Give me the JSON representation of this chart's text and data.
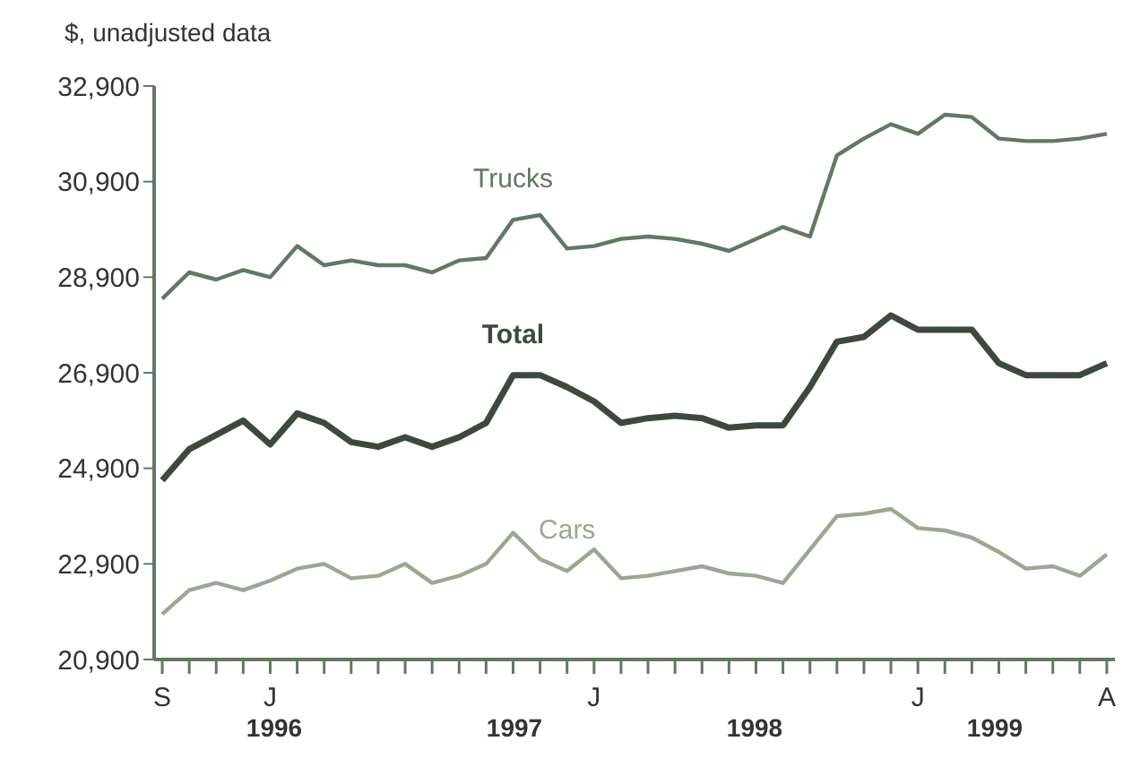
{
  "chart_data": {
    "type": "line",
    "ylabel": "$, unadjusted data",
    "categories": [
      "S",
      null,
      null,
      null,
      "J",
      null,
      null,
      null,
      null,
      null,
      null,
      null,
      null,
      null,
      null,
      null,
      "J",
      null,
      null,
      null,
      null,
      null,
      null,
      null,
      null,
      null,
      null,
      null,
      "J",
      null,
      null,
      null,
      null,
      null,
      null,
      "A"
    ],
    "series": [
      {
        "name": "Trucks",
        "color": "#5f7a60",
        "values": [
          28450,
          29000,
          28850,
          29050,
          28900,
          29550,
          29150,
          29250,
          29150,
          29150,
          29000,
          29250,
          29300,
          30100,
          30200,
          29500,
          29550,
          29700,
          29750,
          29700,
          29600,
          29450,
          29700,
          29950,
          29750,
          31450,
          31800,
          32100,
          31900,
          32300,
          32250,
          31800,
          31750,
          31750,
          31800,
          31900
        ]
      },
      {
        "name": "Total",
        "color": "#3b4a3d",
        "values": [
          24650,
          25300,
          25600,
          25900,
          25400,
          26050,
          25850,
          25450,
          25350,
          25550,
          25350,
          25550,
          25850,
          26850,
          26850,
          26600,
          26300,
          25850,
          25950,
          26000,
          25950,
          25750,
          25800,
          25800,
          26600,
          27550,
          27650,
          28100,
          27800,
          27800,
          27800,
          27100,
          26850,
          26850,
          26850,
          27100
        ]
      },
      {
        "name": "Cars",
        "color": "#9aa88f",
        "values": [
          21850,
          22350,
          22500,
          22350,
          22550,
          22800,
          22900,
          22600,
          22650,
          22900,
          22500,
          22650,
          22900,
          23550,
          23000,
          22750,
          23200,
          22600,
          22650,
          22750,
          22850,
          22700,
          22650,
          22500,
          23200,
          23900,
          23950,
          24050,
          23650,
          23600,
          23450,
          23150,
          22800,
          22850,
          22650,
          23100
        ]
      }
    ],
    "ylim": [
      20900,
      32900
    ],
    "yticks": [
      {
        "value": 20900,
        "label": "20,900"
      },
      {
        "value": 22900,
        "label": "22,900"
      },
      {
        "value": 24900,
        "label": "24,900"
      },
      {
        "value": 26900,
        "label": "26,900"
      },
      {
        "value": 28900,
        "label": "28,900"
      },
      {
        "value": 30900,
        "label": "30,900"
      },
      {
        "value": 32900,
        "label": "32,900"
      }
    ],
    "annotations": [
      "1996",
      "1997",
      "1998",
      "1999"
    ],
    "grid": false,
    "legend": false,
    "marker": "none",
    "line_style": "solid"
  }
}
